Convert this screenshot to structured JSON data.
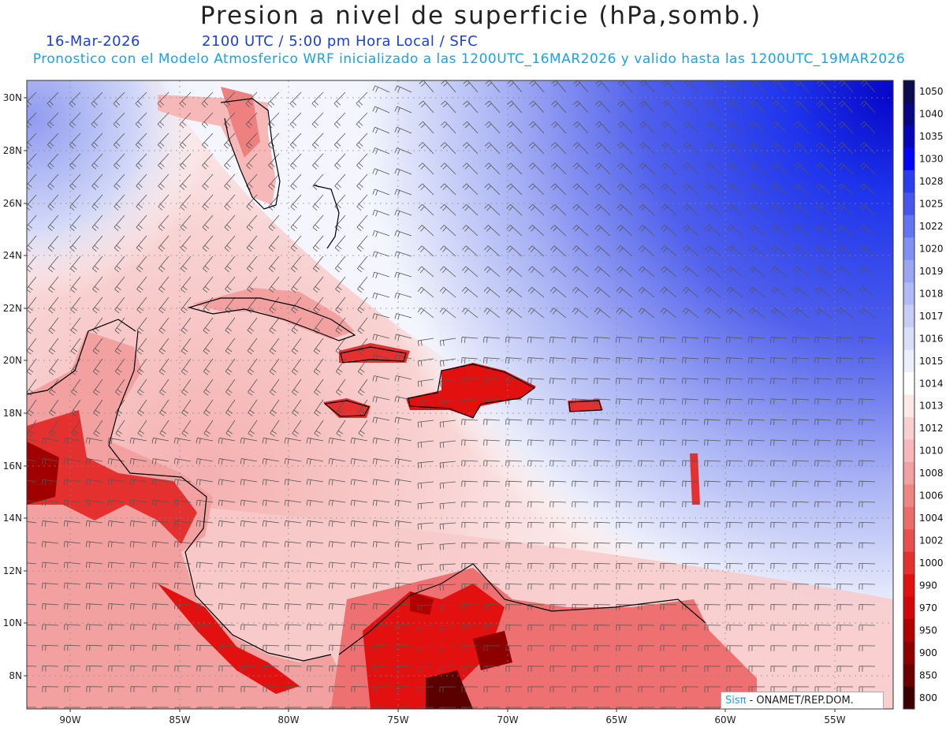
{
  "header": {
    "title": "Presion a nivel de superficie (hPa,somb.)",
    "date": "16-Mar-2026",
    "time_info": "2100 UTC / 5:00 pm Hora Local / SFC",
    "model_info": "Pronostico con el Modelo Atmosferico WRF inicializado a las 1200UTC_16MAR2026 y valido hasta las  1200UTC_19MAR2026"
  },
  "map": {
    "lat_labels": [
      "30N",
      "28N",
      "26N",
      "24N",
      "22N",
      "20N",
      "18N",
      "16N",
      "14N",
      "12N",
      "10N",
      "8N"
    ],
    "lon_labels": [
      "90W",
      "85W",
      "80W",
      "75W",
      "70W",
      "65W",
      "60W",
      "55W"
    ],
    "colors": {
      "high_pressure": "#1a2fe8",
      "low_pressure": "#e80e0e"
    }
  },
  "colorbar": {
    "levels": [
      "1050",
      "1040",
      "1035",
      "1030",
      "1028",
      "1025",
      "1022",
      "1020",
      "1019",
      "1018",
      "1017",
      "1016",
      "1015",
      "1014",
      "1013",
      "1012",
      "1010",
      "1008",
      "1006",
      "1004",
      "1002",
      "1000",
      "990",
      "970",
      "950",
      "900",
      "850",
      "800"
    ],
    "colors": [
      "#0c0c50",
      "#080880",
      "#0606b8",
      "#0505f5",
      "#2a3ef0",
      "#4856ee",
      "#6574f0",
      "#8190f2",
      "#9aa6f4",
      "#b0baf6",
      "#c6cef8",
      "#dadff9",
      "#eceffc",
      "#ffffff",
      "#fde8e8",
      "#f9d0d0",
      "#f6b8b8",
      "#f2a0a0",
      "#ef8686",
      "#ec6c6c",
      "#e85050",
      "#e53030",
      "#e31010",
      "#d00808",
      "#b00000",
      "#8e0000",
      "#6a0000",
      "#3c0000"
    ]
  },
  "logo": {
    "sis": "Sisπ",
    "rest": "- ONAMET/REP.DOM."
  }
}
